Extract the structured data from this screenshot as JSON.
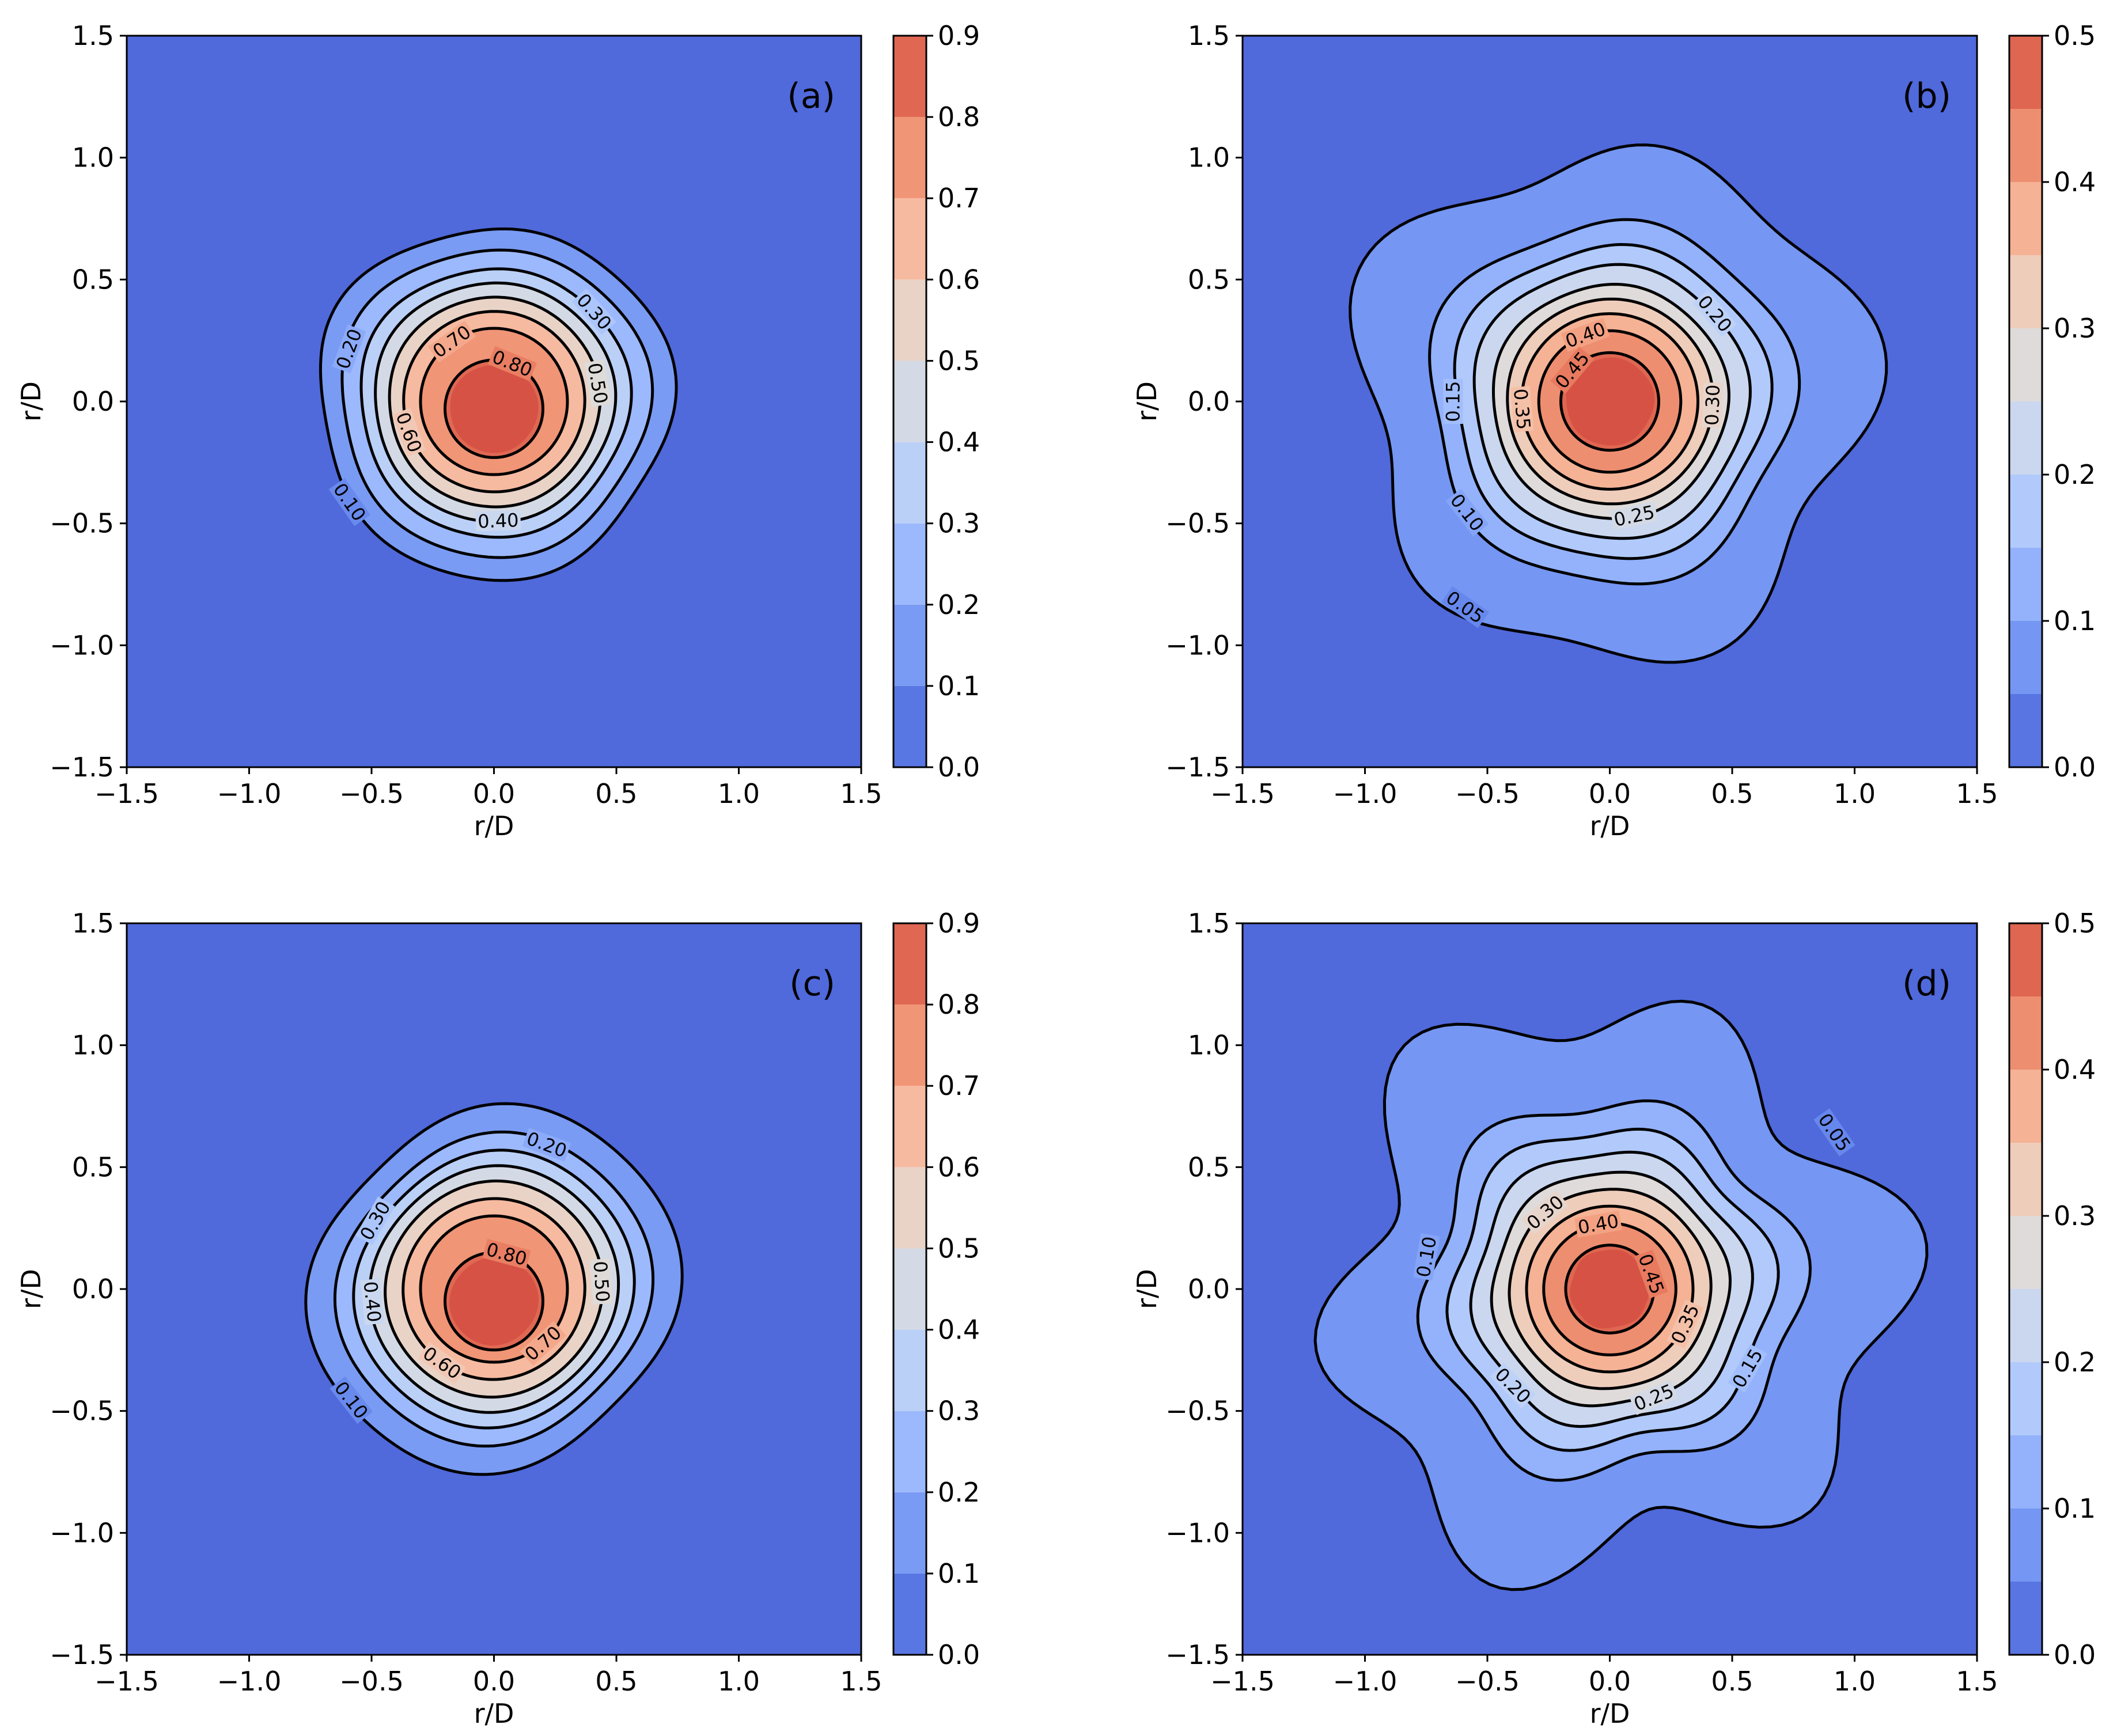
{
  "chart_data": [
    {
      "type": "contour",
      "panel_label": "(a)",
      "xlabel": "r/D",
      "ylabel": "r/D",
      "xlim": [
        -1.5,
        1.5
      ],
      "ylim": [
        -1.5,
        1.5
      ],
      "xticks": [
        "−1.5",
        "−1.0",
        "−0.5",
        "0.0",
        "0.5",
        "1.0",
        "1.5"
      ],
      "yticks": [
        "−1.5",
        "−1.0",
        "−0.5",
        "0.0",
        "0.5",
        "1.0",
        "1.5"
      ],
      "colorbar": {
        "min": 0.0,
        "max": 0.9,
        "ticks": [
          "0.0",
          "0.1",
          "0.2",
          "0.3",
          "0.4",
          "0.5",
          "0.6",
          "0.7",
          "0.8",
          "0.9"
        ]
      },
      "fill_levels": [
        0.1,
        0.2,
        0.3,
        0.4,
        0.5,
        0.6,
        0.7,
        0.8,
        0.9
      ],
      "contour_levels": [
        {
          "level": 0.1,
          "radius": 0.72,
          "center": [
            0.0,
            0.0
          ],
          "label": "0.10",
          "label_angle_deg": 215
        },
        {
          "level": 0.2,
          "radius": 0.63,
          "center": [
            0.0,
            0.0
          ],
          "label": "0.20",
          "label_angle_deg": 160
        },
        {
          "level": 0.3,
          "radius": 0.55,
          "center": [
            0.0,
            0.0
          ],
          "label": "0.30",
          "label_angle_deg": 42
        },
        {
          "level": 0.4,
          "radius": 0.49,
          "center": [
            0.0,
            0.0
          ],
          "label": "0.40",
          "label_angle_deg": 272
        },
        {
          "level": 0.5,
          "radius": 0.43,
          "center": [
            0.0,
            0.0
          ],
          "label": "0.50",
          "label_angle_deg": 10
        },
        {
          "level": 0.6,
          "radius": 0.37,
          "center": [
            0.0,
            0.0
          ],
          "label": "0.60",
          "label_angle_deg": 200
        },
        {
          "level": 0.7,
          "radius": 0.3,
          "center": [
            0.0,
            0.0
          ],
          "label": "0.70",
          "label_angle_deg": 125
        },
        {
          "level": 0.8,
          "radius": 0.2,
          "center": [
            0.0,
            -0.03
          ],
          "label": "0.80",
          "label_angle_deg": 68
        }
      ],
      "peak": 0.9,
      "peak_center": [
        0.0,
        -0.03
      ]
    },
    {
      "type": "contour",
      "panel_label": "(b)",
      "xlabel": "r/D",
      "ylabel": "r/D",
      "xlim": [
        -1.5,
        1.5
      ],
      "ylim": [
        -1.5,
        1.5
      ],
      "xticks": [
        "−1.5",
        "−1.0",
        "−0.5",
        "0.0",
        "0.5",
        "1.0",
        "1.5"
      ],
      "yticks": [
        "−1.5",
        "−1.0",
        "−0.5",
        "0.0",
        "0.5",
        "1.0",
        "1.5"
      ],
      "colorbar": {
        "min": 0.0,
        "max": 0.5,
        "ticks": [
          "0.0",
          "0.1",
          "0.2",
          "0.3",
          "0.4",
          "0.5"
        ]
      },
      "fill_levels": [
        0.05,
        0.1,
        0.15,
        0.2,
        0.25,
        0.3,
        0.35,
        0.4,
        0.45,
        0.5
      ],
      "contour_levels": [
        {
          "level": 0.05,
          "radius": 1.03,
          "center": [
            0.0,
            0.0
          ],
          "label": "0.05",
          "label_angle_deg": 235
        },
        {
          "level": 0.1,
          "radius": 0.74,
          "center": [
            0.0,
            0.0
          ],
          "label": "0.10",
          "label_angle_deg": 218
        },
        {
          "level": 0.15,
          "radius": 0.64,
          "center": [
            0.0,
            0.0
          ],
          "label": "0.15",
          "label_angle_deg": 180
        },
        {
          "level": 0.2,
          "radius": 0.56,
          "center": [
            0.0,
            0.0
          ],
          "label": "0.20",
          "label_angle_deg": 40
        },
        {
          "level": 0.25,
          "radius": 0.48,
          "center": [
            0.0,
            0.0
          ],
          "label": "0.25",
          "label_angle_deg": 282
        },
        {
          "level": 0.3,
          "radius": 0.42,
          "center": [
            0.0,
            0.0
          ],
          "label": "0.30",
          "label_angle_deg": 358
        },
        {
          "level": 0.35,
          "radius": 0.36,
          "center": [
            0.0,
            0.0
          ],
          "label": "0.35",
          "label_angle_deg": 185
        },
        {
          "level": 0.4,
          "radius": 0.29,
          "center": [
            0.0,
            0.0
          ],
          "label": "0.40",
          "label_angle_deg": 110
        },
        {
          "level": 0.45,
          "radius": 0.2,
          "center": [
            0.0,
            0.0
          ],
          "label": "0.45",
          "label_angle_deg": 140
        }
      ],
      "peak": 0.5,
      "peak_center": [
        0.0,
        0.0
      ]
    },
    {
      "type": "contour",
      "panel_label": "(c)",
      "xlabel": "r/D",
      "ylabel": "r/D",
      "xlim": [
        -1.5,
        1.5
      ],
      "ylim": [
        -1.5,
        1.5
      ],
      "xticks": [
        "−1.5",
        "−1.0",
        "−0.5",
        "0.0",
        "0.5",
        "1.0",
        "1.5"
      ],
      "yticks": [
        "−1.5",
        "−1.0",
        "−0.5",
        "0.0",
        "0.5",
        "1.0",
        "1.5"
      ],
      "colorbar": {
        "min": 0.0,
        "max": 0.9,
        "ticks": [
          "0.0",
          "0.1",
          "0.2",
          "0.3",
          "0.4",
          "0.5",
          "0.6",
          "0.7",
          "0.8",
          "0.9"
        ]
      },
      "fill_levels": [
        0.1,
        0.2,
        0.3,
        0.4,
        0.5,
        0.6,
        0.7,
        0.8,
        0.9
      ],
      "contour_levels": [
        {
          "level": 0.1,
          "radius": 0.74,
          "center": [
            0.0,
            0.0
          ],
          "label": "0.10",
          "label_angle_deg": 218
        },
        {
          "level": 0.2,
          "radius": 0.63,
          "center": [
            0.0,
            0.0
          ],
          "label": "0.20",
          "label_angle_deg": 70
        },
        {
          "level": 0.3,
          "radius": 0.56,
          "center": [
            0.0,
            0.0
          ],
          "label": "0.30",
          "label_angle_deg": 150
        },
        {
          "level": 0.4,
          "radius": 0.5,
          "center": [
            0.0,
            0.0
          ],
          "label": "0.40",
          "label_angle_deg": 186
        },
        {
          "level": 0.5,
          "radius": 0.44,
          "center": [
            0.0,
            0.0
          ],
          "label": "0.50",
          "label_angle_deg": 4
        },
        {
          "level": 0.6,
          "radius": 0.37,
          "center": [
            0.0,
            0.0
          ],
          "label": "0.60",
          "label_angle_deg": 235
        },
        {
          "level": 0.7,
          "radius": 0.3,
          "center": [
            0.0,
            0.0
          ],
          "label": "0.70",
          "label_angle_deg": 312
        },
        {
          "level": 0.8,
          "radius": 0.2,
          "center": [
            0.0,
            -0.05
          ],
          "label": "0.80",
          "label_angle_deg": 75
        }
      ],
      "peak": 0.9,
      "peak_center": [
        0.0,
        -0.05
      ]
    },
    {
      "type": "contour",
      "panel_label": "(d)",
      "xlabel": "r/D",
      "ylabel": "r/D",
      "xlim": [
        -1.5,
        1.5
      ],
      "ylim": [
        -1.5,
        1.5
      ],
      "xticks": [
        "−1.5",
        "−1.0",
        "−0.5",
        "0.0",
        "0.5",
        "1.0",
        "1.5"
      ],
      "yticks": [
        "−1.5",
        "−1.0",
        "−0.5",
        "0.0",
        "0.5",
        "1.0",
        "1.5"
      ],
      "colorbar": {
        "min": 0.0,
        "max": 0.5,
        "ticks": [
          "0.0",
          "0.1",
          "0.2",
          "0.3",
          "0.4",
          "0.5"
        ]
      },
      "fill_levels": [
        0.05,
        0.1,
        0.15,
        0.2,
        0.25,
        0.3,
        0.35,
        0.4,
        0.45,
        0.5
      ],
      "contour_levels": [
        {
          "level": 0.05,
          "radius": 1.12,
          "center": [
            0.0,
            0.0
          ],
          "label": "0.05",
          "label_angle_deg": 35
        },
        {
          "level": 0.1,
          "radius": 0.76,
          "center": [
            0.0,
            0.0
          ],
          "label": "0.10",
          "label_angle_deg": 170
        },
        {
          "level": 0.15,
          "radius": 0.65,
          "center": [
            0.0,
            0.0
          ],
          "label": "0.15",
          "label_angle_deg": 330
        },
        {
          "level": 0.2,
          "radius": 0.56,
          "center": [
            0.0,
            0.0
          ],
          "label": "0.20",
          "label_angle_deg": 225
        },
        {
          "level": 0.25,
          "radius": 0.48,
          "center": [
            0.0,
            0.0
          ],
          "label": "0.25",
          "label_angle_deg": 292
        },
        {
          "level": 0.3,
          "radius": 0.41,
          "center": [
            0.0,
            0.0
          ],
          "label": "0.30",
          "label_angle_deg": 130
        },
        {
          "level": 0.35,
          "radius": 0.34,
          "center": [
            0.0,
            0.0
          ],
          "label": "0.35",
          "label_angle_deg": 335
        },
        {
          "level": 0.4,
          "radius": 0.27,
          "center": [
            0.0,
            0.0
          ],
          "label": "0.40",
          "label_angle_deg": 100
        },
        {
          "level": 0.45,
          "radius": 0.18,
          "center": [
            0.0,
            0.0
          ],
          "label": "0.45",
          "label_angle_deg": 20
        }
      ],
      "peak": 0.5,
      "peak_center": [
        0.0,
        0.0
      ]
    }
  ],
  "colors": {
    "colormap": [
      "#4a62d6",
      "#6384eb",
      "#7f9ff5",
      "#9ab8fd",
      "#b5cdfb",
      "#cbd8ee",
      "#dddcdb",
      "#eed0c0",
      "#f6b99e",
      "#f29b7b",
      "#e7765c",
      "#d65244"
    ],
    "contour_line": "#000000",
    "axis": "#000000"
  }
}
